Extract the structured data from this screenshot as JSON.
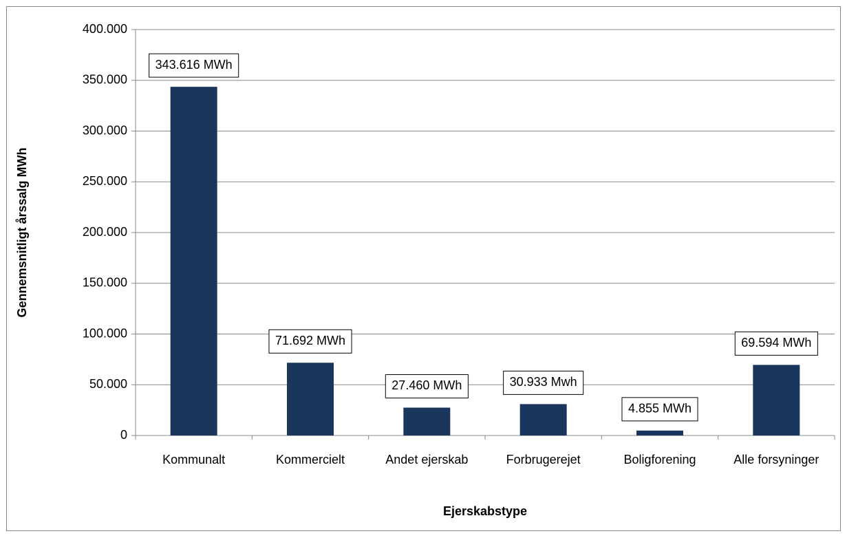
{
  "chart_data": {
    "type": "bar",
    "x_label": "Ejerskabstype",
    "y_label": "Gennemsnitligt årssalg MWh",
    "categories": [
      "Kommunalt",
      "Kommercielt",
      "Andet ejerskab",
      "Forbrugerejet",
      "Boligforening",
      "Alle forsyninger"
    ],
    "values": [
      343616,
      71692,
      27460,
      30933,
      4855,
      69594
    ],
    "value_labels": [
      "343.616 MWh",
      "71.692 MWh",
      "27.460 MWh",
      "30.933 Mwh",
      "4.855 MWh",
      "69.594 MWh"
    ],
    "color": "#1b365d",
    "ylim": [
      0,
      400000
    ],
    "yticks": [
      0,
      {
        "value": 50000,
        "label": "50.000"
      },
      {
        "value": 100000,
        "label": "100.000"
      },
      {
        "value": 150000,
        "label": "150.000"
      },
      {
        "value": 200000,
        "label": "200.000"
      },
      {
        "value": 250000,
        "label": "250.000"
      },
      {
        "value": 300000,
        "label": "300.000"
      },
      {
        "value": 350000,
        "label": "350.000"
      },
      {
        "value": 400000,
        "label": "400.000"
      }
    ],
    "grid": true
  }
}
